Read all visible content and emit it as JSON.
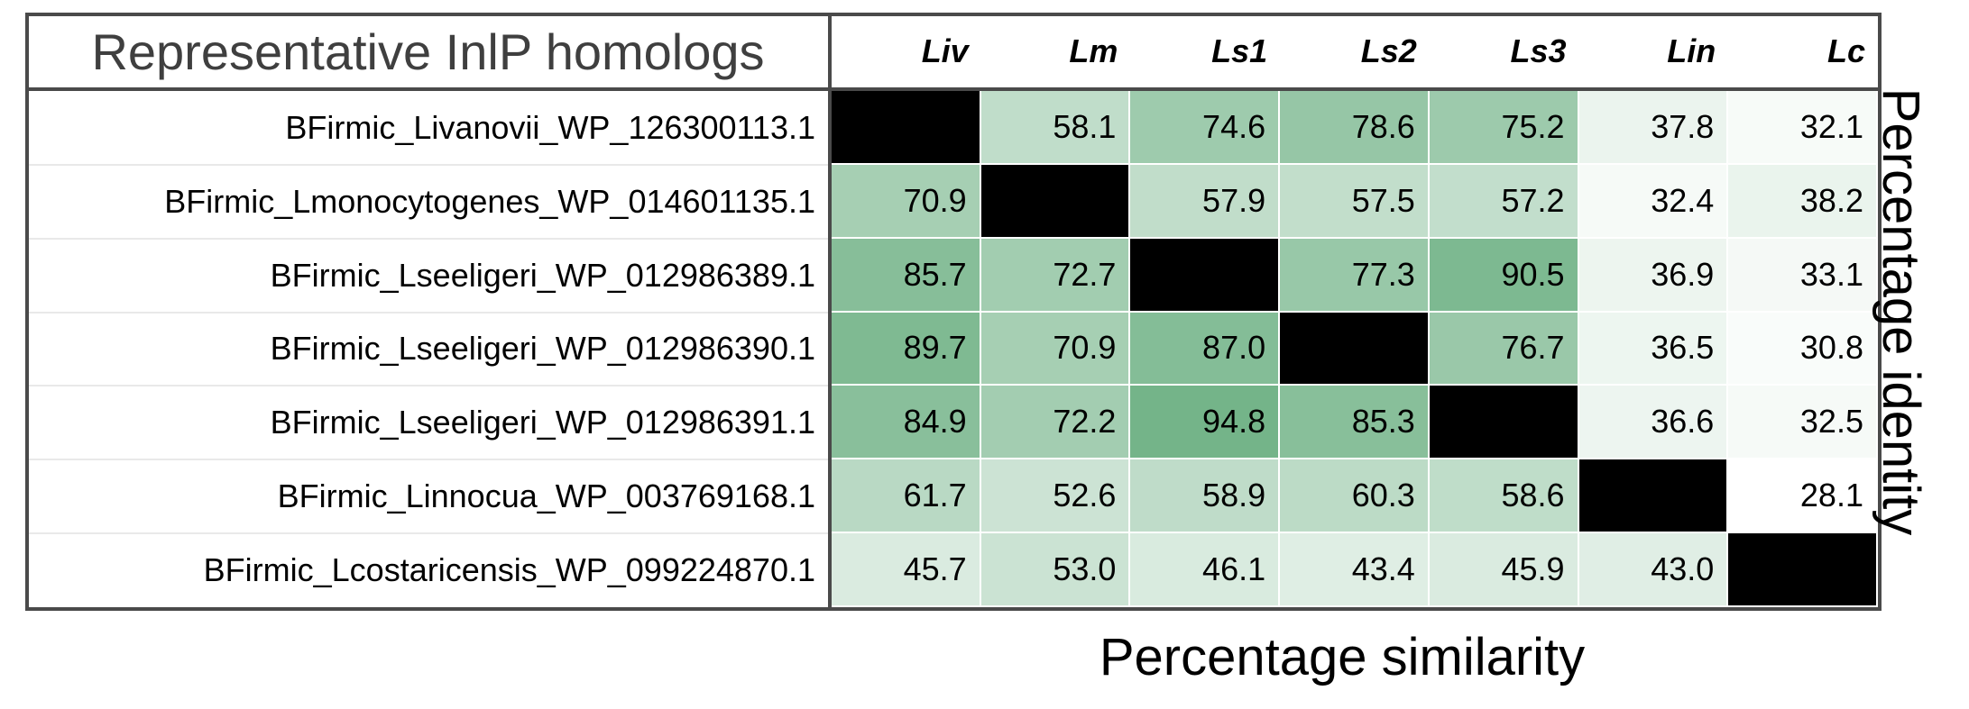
{
  "chart_data": {
    "type": "heatmap",
    "title": "Representative InlP homologs",
    "xlabel": "Percentage similarity",
    "ylabel": "Percentage identity",
    "columns": [
      "Liv",
      "Lm",
      "Ls1",
      "Ls2",
      "Ls3",
      "Lin",
      "Lc"
    ],
    "rows": [
      "BFirmic_Livanovii_WP_126300113.1",
      "BFirmic_Lmonocytogenes_WP_014601135.1",
      "BFirmic_Lseeligeri_WP_012986389.1",
      "BFirmic_Lseeligeri_WP_012986390.1",
      "BFirmic_Lseeligeri_WP_012986391.1",
      "BFirmic_Linnocua_WP_003769168.1",
      "BFirmic_Lcostaricensis_WP_099224870.1"
    ],
    "values": [
      [
        null,
        58.1,
        74.6,
        78.6,
        75.2,
        37.8,
        32.1
      ],
      [
        70.9,
        null,
        57.9,
        57.5,
        57.2,
        32.4,
        38.2
      ],
      [
        85.7,
        72.7,
        null,
        77.3,
        90.5,
        36.9,
        33.1
      ],
      [
        89.7,
        70.9,
        87.0,
        null,
        76.7,
        36.5,
        30.8
      ],
      [
        84.9,
        72.2,
        94.8,
        85.3,
        null,
        36.6,
        32.5
      ],
      [
        61.7,
        52.6,
        58.9,
        60.3,
        58.6,
        null,
        28.1
      ],
      [
        45.7,
        53.0,
        46.1,
        43.4,
        45.9,
        43.0,
        null
      ]
    ],
    "diagonal_color": "#000000",
    "colormap": {
      "low": "#ffffff",
      "high": "#74b489"
    },
    "value_range": [
      28.1,
      94.8
    ]
  }
}
